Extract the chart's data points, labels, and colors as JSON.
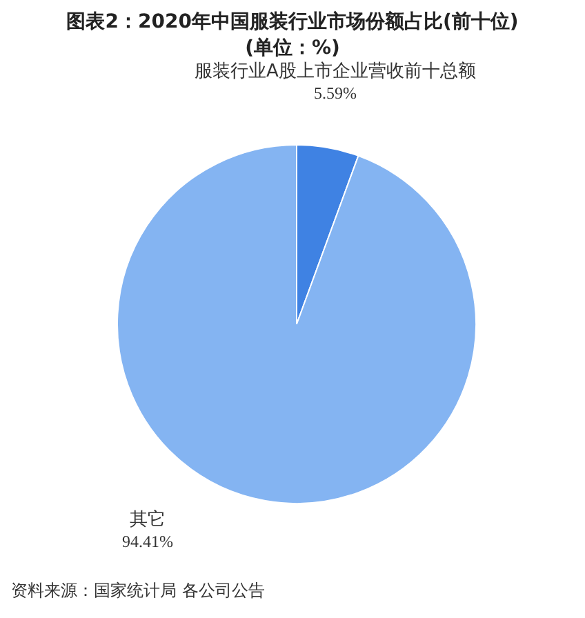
{
  "chart_data": {
    "type": "pie",
    "title": "图表2：2020年中国服装行业市场份额占比(前十位)\n(单位：%)",
    "categories": [
      "服装行业A股上市企业营收前十总额",
      "其它"
    ],
    "values": [
      5.59,
      94.41
    ],
    "colors": [
      "#3f82e3",
      "#84b4f2"
    ],
    "value_labels": [
      "5.59%",
      "94.41%"
    ],
    "annotations": [
      "资料来源：国家统计局 各公司公告"
    ]
  }
}
